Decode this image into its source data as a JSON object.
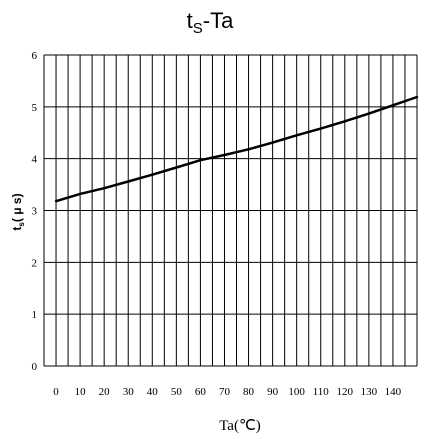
{
  "chart_data": {
    "type": "line",
    "title": {
      "main": "t",
      "sub": "S",
      "rest": "-Ta"
    },
    "xlabel": "Ta(℃)",
    "ylabel": {
      "main": "t",
      "sub": "s",
      "rest": "( μ s)"
    },
    "x_ticks": [
      "0",
      "10",
      "20",
      "30",
      "40",
      "50",
      "60",
      "70",
      "80",
      "90",
      "100",
      "110",
      "120",
      "130",
      "140"
    ],
    "y_ticks": [
      "0",
      "1",
      "2",
      "3",
      "4",
      "5",
      "6"
    ],
    "xlim": [
      -5,
      150
    ],
    "ylim": [
      0,
      6
    ],
    "grid": true,
    "series": [
      {
        "x": [
          0,
          10,
          20,
          30,
          40,
          50,
          60,
          70,
          80,
          90,
          100,
          110,
          120,
          130,
          140,
          150
        ],
        "y": [
          3.18,
          3.32,
          3.43,
          3.56,
          3.69,
          3.83,
          3.97,
          4.07,
          4.18,
          4.31,
          4.45,
          4.58,
          4.72,
          4.87,
          5.03,
          5.19
        ]
      }
    ]
  },
  "style": {
    "line_color": "#000000",
    "grid_color": "#000000"
  }
}
